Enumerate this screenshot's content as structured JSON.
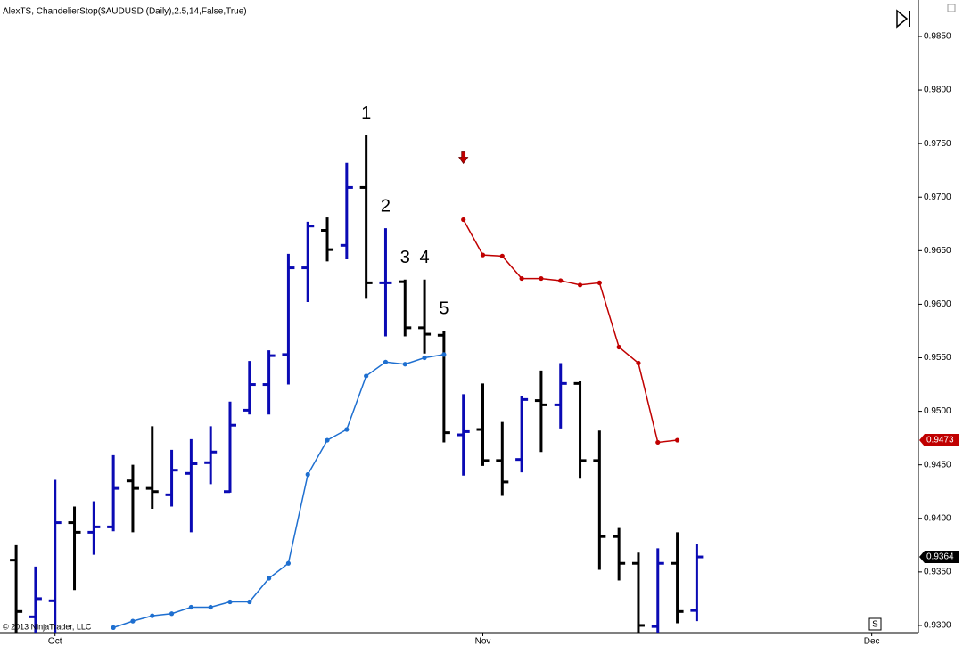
{
  "chart_data": {
    "type": "ohlc",
    "title": "AlexTS, ChandelierStop($AUDUSD (Daily),2.5,14,False,True)",
    "copyright": "© 2013 NinjaTrader, LLC",
    "corner_label": "S",
    "up_color": "#0a0ab4",
    "down_color": "#000000",
    "open": [
      0.9361,
      0.9308,
      0.9323,
      0.9396,
      0.9387,
      0.9392,
      0.9435,
      0.9428,
      0.9422,
      0.9442,
      0.9452,
      0.9425,
      0.9501,
      0.9525,
      0.9553,
      0.9634,
      0.9669,
      0.9655,
      0.9709,
      0.962,
      0.9621,
      0.9578,
      0.9571,
      0.9478,
      0.9483,
      0.9454,
      0.9455,
      0.951,
      0.9506,
      0.9526,
      0.9454,
      0.9383,
      0.9358,
      0.9299,
      0.9358,
      0.9314
    ],
    "high": [
      0.9375,
      0.9355,
      0.9436,
      0.9411,
      0.9416,
      0.9459,
      0.945,
      0.9486,
      0.9464,
      0.9474,
      0.9486,
      0.9509,
      0.9547,
      0.9557,
      0.9647,
      0.9677,
      0.9681,
      0.9732,
      0.9758,
      0.9671,
      0.9623,
      0.9623,
      0.9575,
      0.9516,
      0.9526,
      0.949,
      0.9514,
      0.9538,
      0.9545,
      0.9528,
      0.9482,
      0.9391,
      0.9368,
      0.9372,
      0.9387,
      0.9376
    ],
    "low": [
      0.9293,
      0.9293,
      0.9293,
      0.9333,
      0.9366,
      0.9388,
      0.9387,
      0.9409,
      0.9411,
      0.9387,
      0.9432,
      0.9424,
      0.9497,
      0.9497,
      0.9525,
      0.9602,
      0.964,
      0.9642,
      0.9605,
      0.957,
      0.957,
      0.9554,
      0.9471,
      0.944,
      0.9449,
      0.9421,
      0.9443,
      0.9462,
      0.9484,
      0.9437,
      0.9352,
      0.9342,
      0.9293,
      0.9293,
      0.9302,
      0.9304
    ],
    "close": [
      0.9313,
      0.9325,
      0.9396,
      0.9387,
      0.9392,
      0.9428,
      0.9428,
      0.9425,
      0.9445,
      0.9451,
      0.9462,
      0.9487,
      0.9525,
      0.9552,
      0.9634,
      0.9673,
      0.9651,
      0.9709,
      0.962,
      0.962,
      0.9578,
      0.9572,
      0.948,
      0.9481,
      0.9454,
      0.9434,
      0.9511,
      0.9506,
      0.9526,
      0.9454,
      0.9383,
      0.9358,
      0.93,
      0.9358,
      0.9313,
      0.9364
    ],
    "series": [
      {
        "color": "#1e6fd0",
        "values": [
          null,
          null,
          null,
          null,
          null,
          0.9298,
          0.9304,
          0.9309,
          0.9311,
          0.9317,
          0.9317,
          0.9322,
          0.9322,
          0.9344,
          0.9358,
          0.9441,
          0.9473,
          0.9483,
          0.9533,
          0.9546,
          0.9544,
          0.955,
          0.9553,
          null,
          null,
          null,
          null,
          null,
          null,
          null,
          null,
          null,
          null,
          null,
          null,
          null
        ]
      },
      {
        "color": "#c00000",
        "values": [
          null,
          null,
          null,
          null,
          null,
          null,
          null,
          null,
          null,
          null,
          null,
          null,
          null,
          null,
          null,
          null,
          null,
          null,
          null,
          null,
          null,
          null,
          null,
          0.9679,
          0.9646,
          0.9645,
          0.9624,
          0.9624,
          0.9622,
          0.9618,
          0.962,
          0.956,
          0.9545,
          0.9471,
          0.9473,
          null
        ]
      }
    ],
    "annotations": [
      {
        "text": "1",
        "x": 18
      },
      {
        "text": "2",
        "x": 19
      },
      {
        "text": "3",
        "x": 20
      },
      {
        "text": "4",
        "x": 21
      },
      {
        "text": "5",
        "x": 22
      }
    ],
    "xlim": [
      -0.83,
      46.4
    ],
    "xticks": [
      {
        "value": 2,
        "label": "Oct"
      },
      {
        "value": 24,
        "label": "Nov"
      },
      {
        "value": 44,
        "label": "Dec"
      }
    ],
    "ylim": [
      0.92933,
      0.98841
    ],
    "yticks": [
      {
        "value": 0.93,
        "label": "0.9300"
      },
      {
        "value": 0.935,
        "label": "0.9350"
      },
      {
        "value": 0.94,
        "label": "0.9400"
      },
      {
        "value": 0.945,
        "label": "0.9450"
      },
      {
        "value": 0.95,
        "label": "0.9500"
      },
      {
        "value": 0.955,
        "label": "0.9550"
      },
      {
        "value": 0.96,
        "label": "0.9600"
      },
      {
        "value": 0.965,
        "label": "0.9650"
      },
      {
        "value": 0.97,
        "label": "0.9700"
      },
      {
        "value": 0.975,
        "label": "0.9750"
      },
      {
        "value": 0.98,
        "label": "0.9800"
      },
      {
        "value": 0.985,
        "label": "0.9850"
      }
    ]
  }
}
